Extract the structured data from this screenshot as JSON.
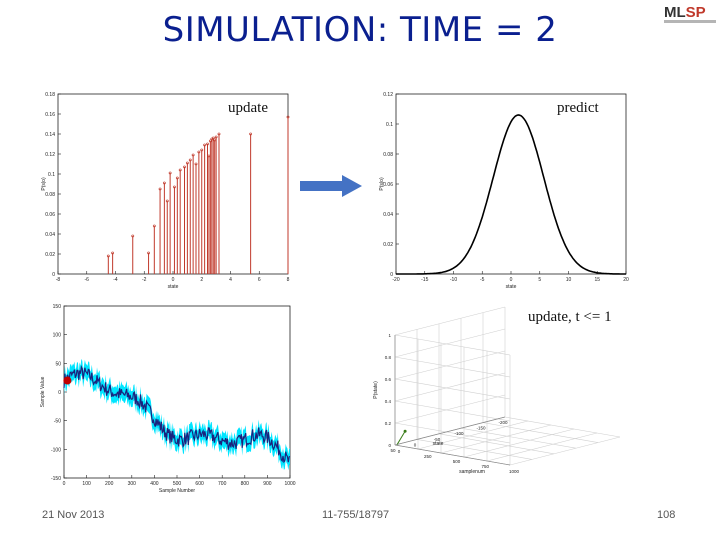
{
  "slide": {
    "title": "SIMULATION: TIME = 2",
    "logo_text": "MLSP",
    "date": "21  Nov 2013",
    "course": "11-755/18797",
    "page_number": "108"
  },
  "colors": {
    "title": "#0a1f8f",
    "stem": "#c0392b",
    "arrow": "#4472c4",
    "signal_band": "#00e5ff",
    "signal_line": "#1a237e",
    "marker": "#c00000"
  },
  "icons": {
    "arrow": "right-arrow-icon",
    "logo": "mlsp-logo"
  },
  "chart_data": [
    {
      "type": "bar",
      "subtype": "stem",
      "label": "update",
      "xlabel": "state",
      "ylabel": "P(s|o)",
      "xlim": [
        -8,
        8
      ],
      "ylim": [
        0,
        0.18
      ],
      "x": [
        -4.5,
        -4.2,
        -2.8,
        -1.7,
        -1.3,
        -0.9,
        -0.6,
        -0.4,
        -0.2,
        0.1,
        0.3,
        0.5,
        0.8,
        1.0,
        1.2,
        1.4,
        1.6,
        1.8,
        2.0,
        2.2,
        2.4,
        2.5,
        2.6,
        2.7,
        2.8,
        2.9,
        3.0,
        3.2,
        5.4,
        8.0
      ],
      "values": [
        0.018,
        0.021,
        0.038,
        0.021,
        0.048,
        0.085,
        0.091,
        0.073,
        0.101,
        0.087,
        0.096,
        0.104,
        0.107,
        0.111,
        0.114,
        0.119,
        0.11,
        0.122,
        0.124,
        0.129,
        0.13,
        0.118,
        0.133,
        0.135,
        0.136,
        0.134,
        0.137,
        0.14,
        0.14,
        0.157
      ]
    },
    {
      "type": "line",
      "label": "predict",
      "xlabel": "state",
      "ylabel": "P(s|o)",
      "xlim": [
        -20,
        20
      ],
      "ylim": [
        0,
        0.12
      ],
      "curve": "gaussian",
      "mean": 1.3,
      "std": 4.4,
      "peak": 0.106
    },
    {
      "type": "area",
      "xlabel": "Sample Number",
      "ylabel": "Sample Value",
      "xlim": [
        0,
        1000
      ],
      "ylim": [
        -150,
        150
      ],
      "start_value": 20,
      "end_value": -125,
      "marker": {
        "x": 15,
        "y": 20
      }
    },
    {
      "type": "scatter",
      "subtype": "3d",
      "label": "update, t <= 1",
      "xlabel": "state",
      "ylabel": "samplenum",
      "zlabel": "P(state)",
      "zlim": [
        0,
        1
      ],
      "ylim": [
        0,
        1000
      ]
    }
  ]
}
